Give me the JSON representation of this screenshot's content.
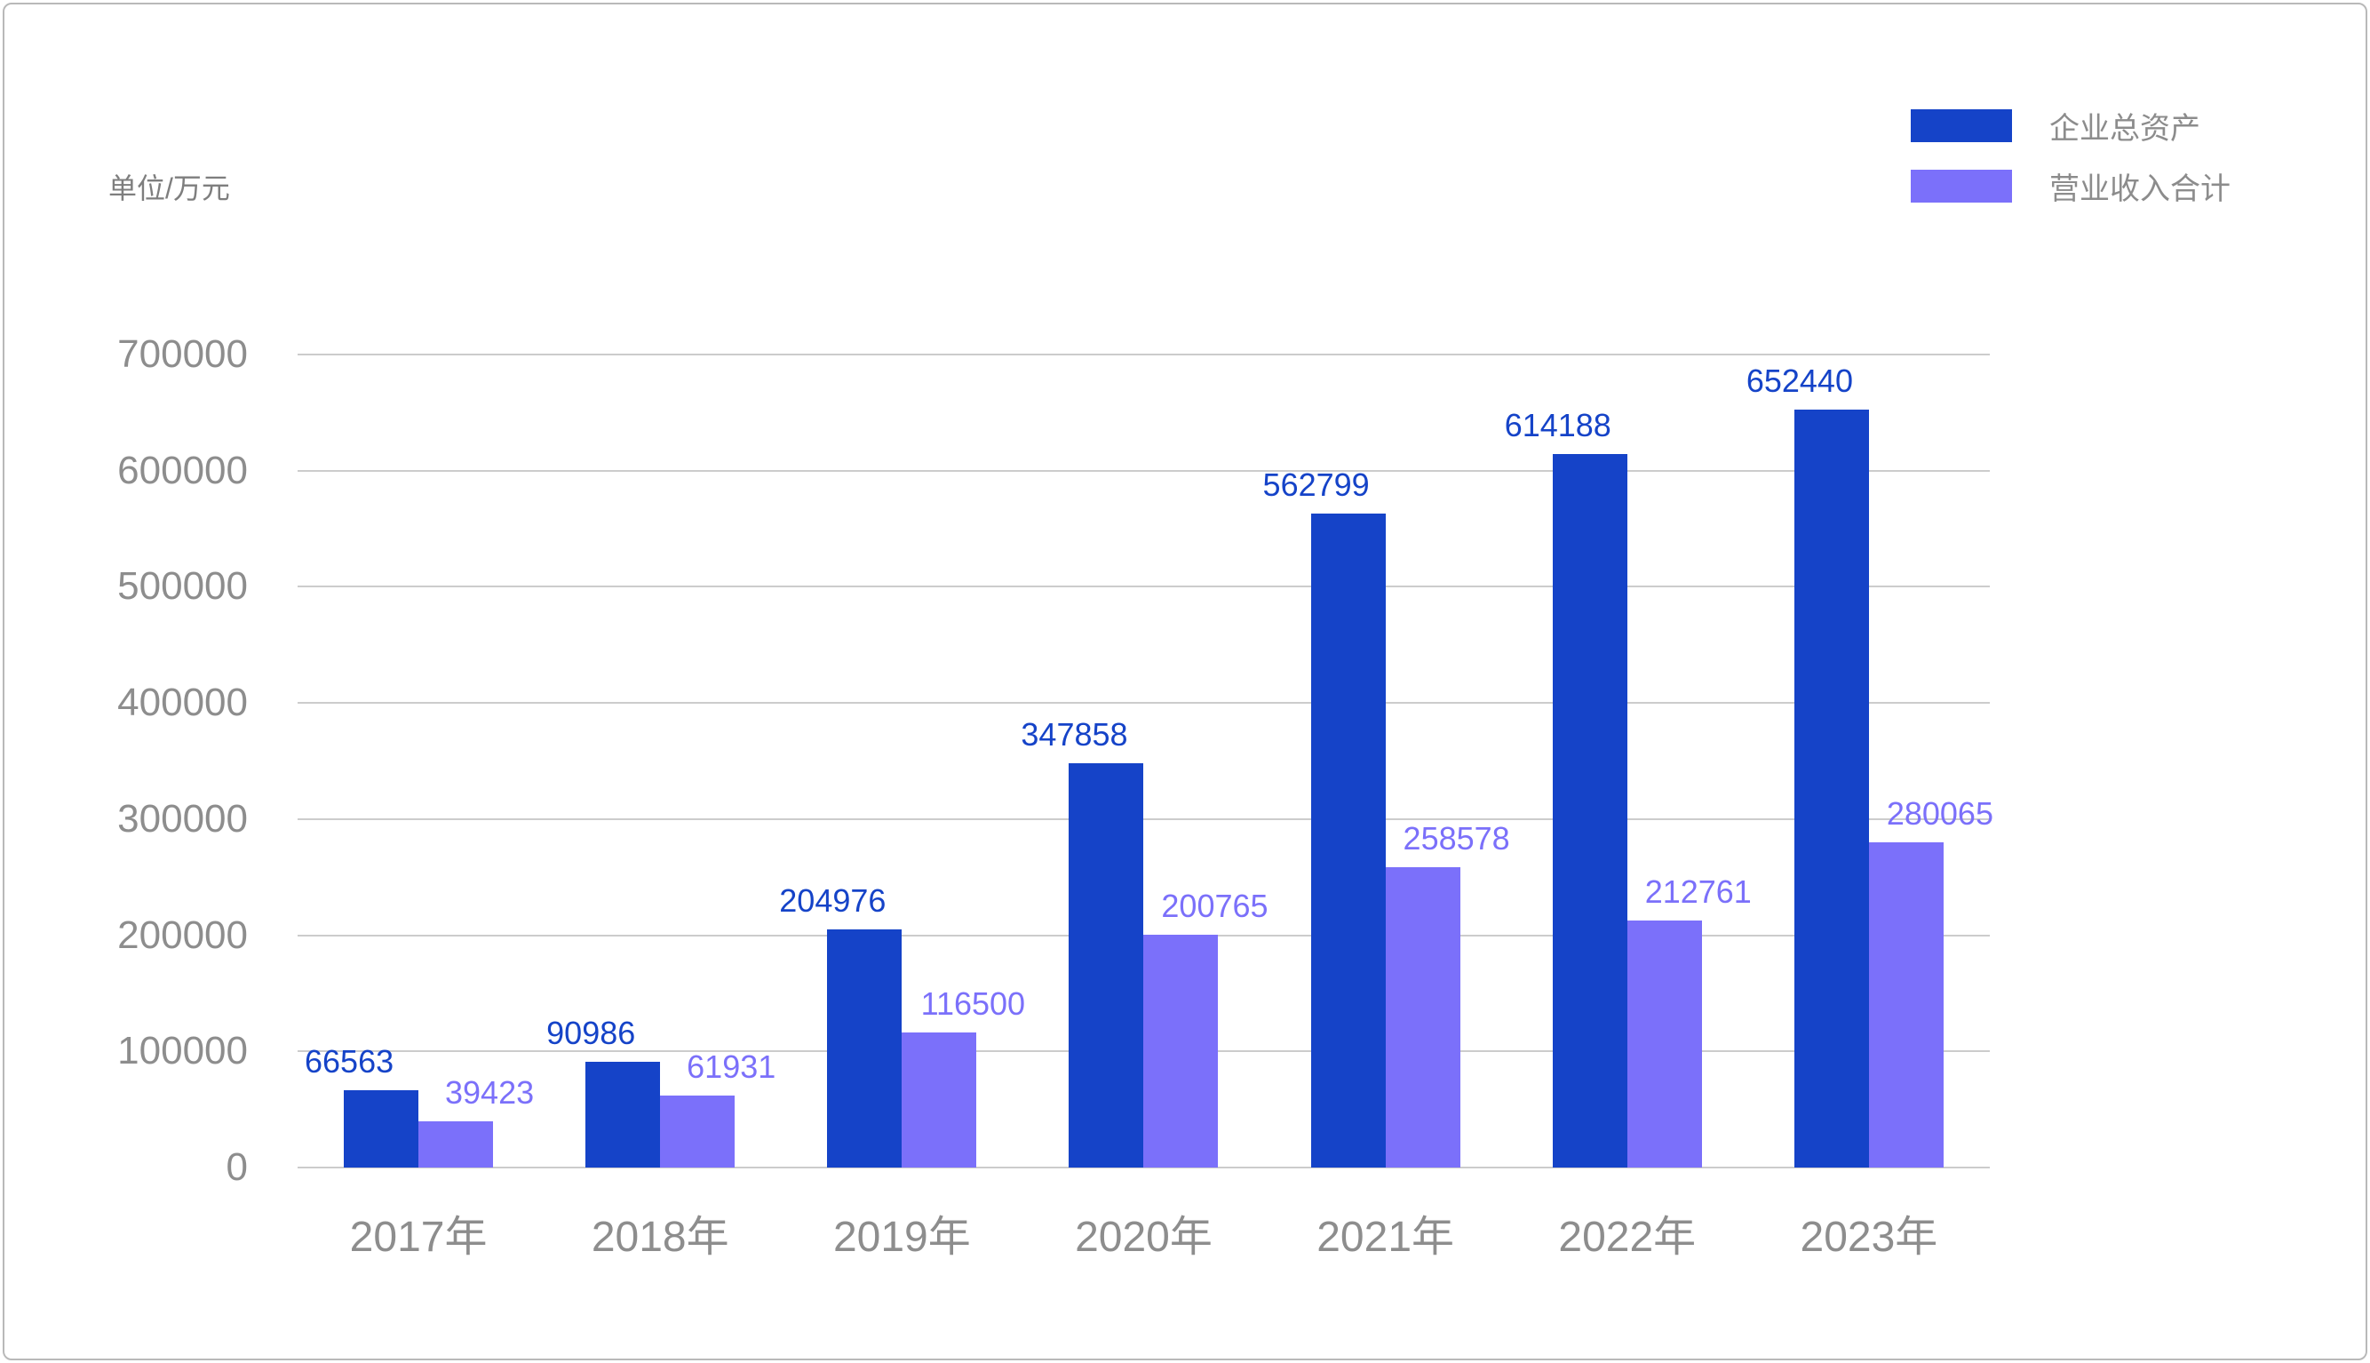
{
  "chart_data": {
    "type": "bar",
    "title": "",
    "categories": [
      "2017年",
      "2018年",
      "2019年",
      "2020年",
      "2021年",
      "2022年",
      "2023年"
    ],
    "series": [
      {
        "name": "企业总资产",
        "color": "#1543c8",
        "values": [
          66563,
          90986,
          204976,
          347858,
          562799,
          614188,
          652440
        ]
      },
      {
        "name": "营业收入合计",
        "color": "#7b70fa",
        "values": [
          39423,
          61931,
          116500,
          200765,
          258578,
          212761,
          280065
        ]
      }
    ],
    "xlabel": "",
    "ylabel": "单位/万元",
    "ylim": [
      0,
      700000
    ],
    "yticks": [
      0,
      100000,
      200000,
      300000,
      400000,
      500000,
      600000,
      700000
    ],
    "grid": true,
    "legend_position": "top-right",
    "colors": {
      "grid_line": "#cccccc",
      "axis_text": "#8d8d8d",
      "unit_text": "#7e7e7e",
      "legend_text": "#8c8c8c",
      "card_border": "#b9b9b9",
      "background": "#ffffff"
    }
  }
}
